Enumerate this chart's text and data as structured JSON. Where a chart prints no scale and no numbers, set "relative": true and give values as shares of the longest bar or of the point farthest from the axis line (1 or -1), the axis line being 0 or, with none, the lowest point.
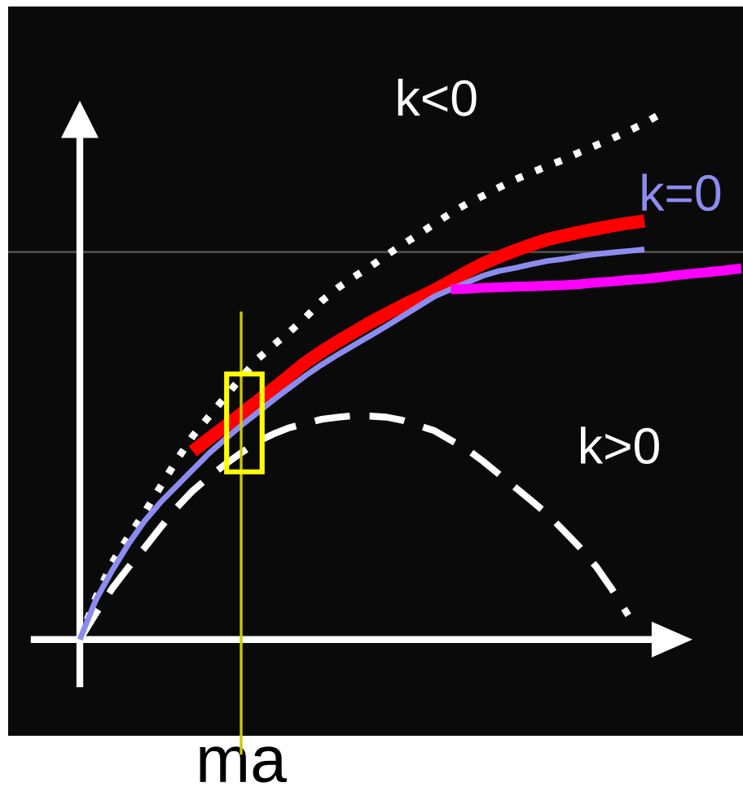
{
  "chart_data": {
    "type": "line",
    "relative": true,
    "categories": [
      null,
      null,
      null,
      null,
      null,
      null,
      null,
      null,
      null,
      null,
      null,
      null,
      null,
      null,
      null,
      null,
      null,
      null,
      null,
      null,
      null,
      null,
      null,
      null,
      null,
      null,
      null,
      null,
      null,
      null,
      null,
      null,
      null,
      null,
      null,
      null,
      null,
      null,
      null,
      null,
      null,
      null
    ],
    "series": [
      {
        "name": "k<0",
        "color": "#ffffff",
        "line_style": "dotted",
        "values": [
          0,
          0.08,
          0.146,
          0.195,
          0.241,
          0.291,
          0.341,
          0.387,
          0.424,
          0.461,
          0.498,
          0.533,
          0.56,
          0.585,
          0.613,
          0.644,
          0.669,
          0.69,
          0.709,
          0.731,
          0.751,
          0.771,
          0.791,
          0.811,
          0.829,
          0.844,
          0.86,
          0.875,
          0.888,
          0.901,
          0.913,
          0.927,
          0.94,
          0.953,
          0.967,
          0.982,
          1.0,
          null,
          null,
          null,
          null,
          null
        ]
      },
      {
        "name": "k>0",
        "color": "#ffffff",
        "line_style": "dashed",
        "values": [
          0,
          0.05,
          0.097,
          0.137,
          0.174,
          0.213,
          0.251,
          0.283,
          0.309,
          0.333,
          0.355,
          0.376,
          0.391,
          0.403,
          0.411,
          0.419,
          0.423,
          0.426,
          0.425,
          0.423,
          0.417,
          0.407,
          0.397,
          0.379,
          0.362,
          0.339,
          0.314,
          0.289,
          0.264,
          0.238,
          0.207,
          0.175,
          0.139,
          0.095,
          0.046,
          null,
          null,
          null,
          null,
          null,
          null,
          null
        ]
      },
      {
        "color": "#ff0000",
        "values": [
          null,
          null,
          null,
          null,
          null,
          null,
          null,
          0.358,
          0.382,
          0.405,
          0.429,
          0.453,
          0.477,
          0.502,
          0.527,
          0.548,
          0.567,
          0.585,
          0.603,
          0.619,
          0.635,
          0.65,
          0.665,
          0.682,
          0.699,
          0.715,
          0.728,
          0.74,
          0.751,
          0.761,
          0.768,
          0.775,
          0.781,
          0.787,
          0.792,
          0.796,
          null,
          null,
          null,
          null,
          null,
          null
        ]
      },
      {
        "name": "k=0",
        "color": "#8c8cf0",
        "values": [
          0,
          0.076,
          0.131,
          0.181,
          0.225,
          0.261,
          0.292,
          0.323,
          0.354,
          0.381,
          0.407,
          0.431,
          0.456,
          0.479,
          0.502,
          0.523,
          0.542,
          0.56,
          0.578,
          0.596,
          0.615,
          0.634,
          0.653,
          0.666,
          0.679,
          0.692,
          0.701,
          0.707,
          0.714,
          0.72,
          0.724,
          0.729,
          0.733,
          0.736,
          0.739,
          0.742,
          null,
          null,
          null,
          null,
          null,
          null
        ]
      },
      {
        "color": "#ff00ff",
        "values": [
          null,
          null,
          null,
          null,
          null,
          null,
          null,
          null,
          null,
          null,
          null,
          null,
          null,
          null,
          null,
          null,
          null,
          null,
          null,
          null,
          null,
          null,
          null,
          0.666,
          0.667,
          0.669,
          0.67,
          0.671,
          0.672,
          0.673,
          0.674,
          0.676,
          0.679,
          0.681,
          0.684,
          0.686,
          0.689,
          0.693,
          0.696,
          0.699,
          0.702,
          0.706
        ]
      }
    ],
    "ref_lines": [
      {
        "axis": "y",
        "value": 0.737,
        "color": "#4d4d4d"
      }
    ],
    "annotations": [
      "ma"
    ]
  }
}
